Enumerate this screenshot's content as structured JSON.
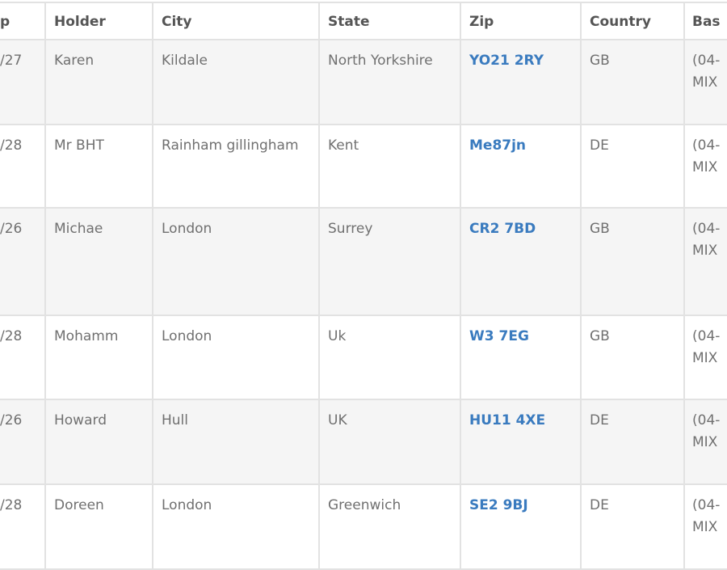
{
  "table": {
    "headers": [
      "p",
      "Holder",
      "City",
      "State",
      "Zip",
      "Country",
      "Bas"
    ],
    "rows": [
      [
        "/27",
        "Karen",
        "Kildale",
        "North Yorkshire",
        "YO21 2RY",
        "GB",
        "(04- MIX"
      ],
      [
        "/28",
        "Mr BHT",
        "Rainham gillingham",
        "Kent",
        "Me87jn",
        "DE",
        "(04- MIX"
      ],
      [
        "/26",
        "Michae",
        "London",
        "Surrey",
        "CR2 7BD",
        "GB",
        "(04- MIX"
      ],
      [
        "/28",
        "Mohamm",
        "London",
        "Uk",
        "W3 7EG",
        "GB",
        "(04- MIX"
      ],
      [
        "/26",
        "Howard",
        "Hull",
        "UK",
        "HU11 4XE",
        "DE",
        "(04- MIX"
      ],
      [
        "/28",
        "Doreen",
        "London",
        "Greenwich",
        "SE2 9BJ",
        "DE",
        "(04- MIX"
      ]
    ]
  },
  "colors": {
    "link": "#3a7bbf",
    "stripe": "#f5f5f5",
    "border": "#e2e2e2"
  }
}
